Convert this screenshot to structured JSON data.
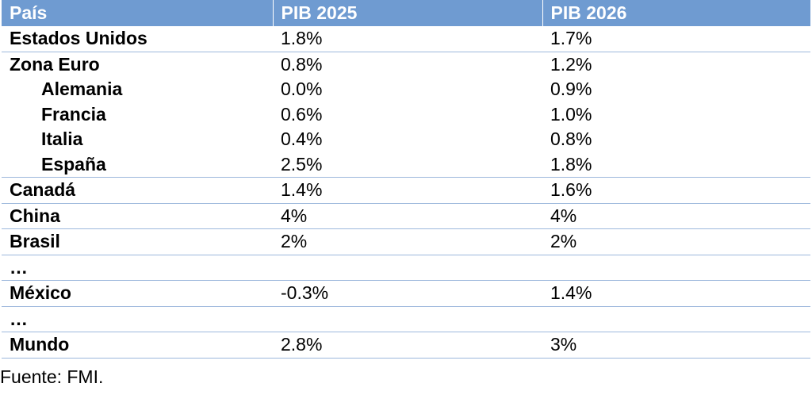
{
  "table": {
    "headers": [
      "País",
      "PIB 2025",
      "PIB 2026"
    ],
    "rows": [
      {
        "country": "Estados Unidos",
        "pib_2025": "1.8%",
        "pib_2026": "1.7%",
        "indent": false
      },
      {
        "country": "Zona Euro",
        "pib_2025": "0.8%",
        "pib_2026": "1.2%",
        "indent": false
      },
      {
        "country": "Alemania",
        "pib_2025": "0.0%",
        "pib_2026": "0.9%",
        "indent": true
      },
      {
        "country": "Francia",
        "pib_2025": "0.6%",
        "pib_2026": "1.0%",
        "indent": true
      },
      {
        "country": "Italia",
        "pib_2025": "0.4%",
        "pib_2026": "0.8%",
        "indent": true
      },
      {
        "country": "España",
        "pib_2025": "2.5%",
        "pib_2026": "1.8%",
        "indent": true
      },
      {
        "country": "Canadá",
        "pib_2025": "1.4%",
        "pib_2026": "1.6%",
        "indent": false
      },
      {
        "country": "China",
        "pib_2025": "4%",
        "pib_2026": "4%",
        "indent": false
      },
      {
        "country": "Brasil",
        "pib_2025": "2%",
        "pib_2026": "2%",
        "indent": false
      },
      {
        "country": "…",
        "pib_2025": "",
        "pib_2026": "",
        "indent": false
      },
      {
        "country": "México",
        "pib_2025": "-0.3%",
        "pib_2026": "1.4%",
        "indent": false
      },
      {
        "country": "…",
        "pib_2025": "",
        "pib_2026": "",
        "indent": false
      },
      {
        "country": "Mundo",
        "pib_2025": "2.8%",
        "pib_2026": "3%",
        "indent": false
      }
    ]
  },
  "source": "Fuente: FMI.",
  "colors": {
    "header_background": "#6f9bd1",
    "row_divider": "#9db8dc"
  }
}
